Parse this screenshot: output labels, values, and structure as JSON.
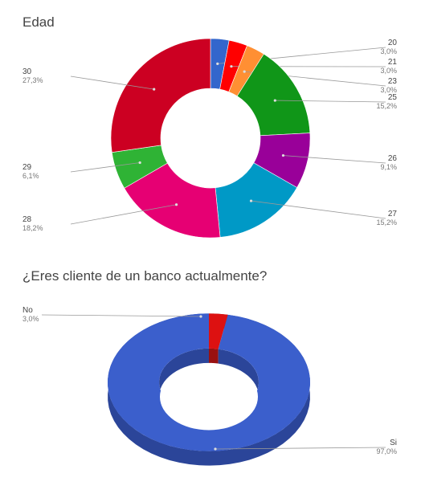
{
  "chart_data": [
    {
      "type": "pie",
      "title": "Edad",
      "categories": [
        "20",
        "21",
        "23",
        "25",
        "26",
        "27",
        "28",
        "29",
        "30"
      ],
      "values": [
        3.0,
        3.0,
        3.0,
        15.2,
        9.1,
        15.2,
        18.2,
        6.1,
        27.3
      ],
      "value_labels": [
        "3,0%",
        "3,0%",
        "3,0%",
        "15,2%",
        "9,1%",
        "15,2%",
        "18,2%",
        "6,1%",
        "27,3%"
      ],
      "colors": [
        "#3366cc",
        "#ff0000",
        "#ff8f33",
        "#109618",
        "#990099",
        "#0099c6",
        "#e60073",
        "#2fb335",
        "#cc0022"
      ],
      "donut": true
    },
    {
      "type": "pie",
      "title": "¿Eres cliente de un banco actualmente?",
      "categories": [
        "Si",
        "No"
      ],
      "values": [
        97.0,
        3.0
      ],
      "value_labels": [
        "97,0%",
        "3,0%"
      ],
      "colors": [
        "#3b5fcc",
        "#dd1111"
      ],
      "donut": true,
      "three_d": true
    }
  ]
}
